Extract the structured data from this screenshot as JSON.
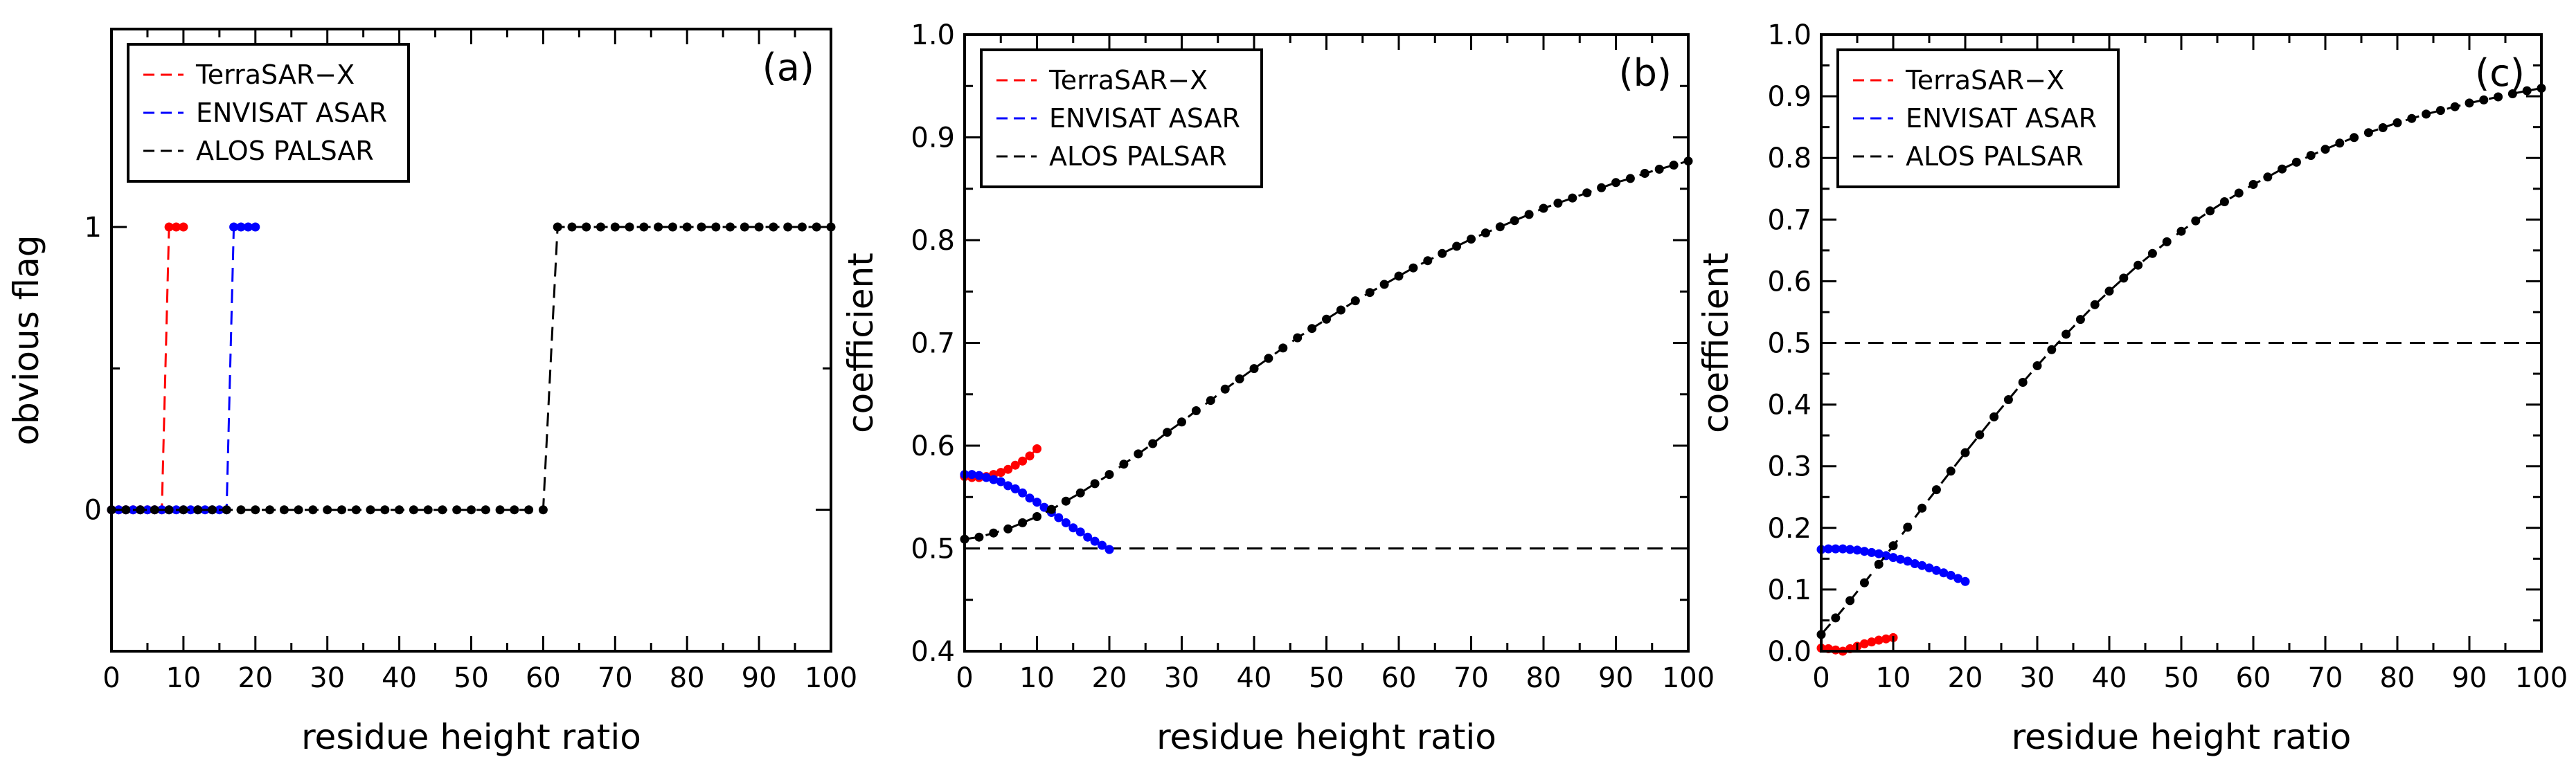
{
  "figure": {
    "background": "#ffffff"
  },
  "series_styles": [
    {
      "name": "TerraSAR−X",
      "color": "#ff0000"
    },
    {
      "name": "ENVISAT ASAR",
      "color": "#0000ff"
    },
    {
      "name": "ALOS PALSAR",
      "color": "#000000"
    }
  ],
  "chart_data": [
    {
      "type": "line",
      "panel": "(a)",
      "xlabel": "residue height ratio",
      "ylabel": "obvious flag",
      "xlim": [
        0,
        100
      ],
      "ylim": [
        -0.5,
        1.7
      ],
      "xticks": [
        0,
        10,
        20,
        30,
        40,
        50,
        60,
        70,
        80,
        90,
        100
      ],
      "yticks": [
        0,
        1
      ],
      "hline": null,
      "legend_position": "top-left",
      "series": [
        {
          "name": "TerraSAR−X",
          "color": "#ff0000",
          "x": [
            0,
            1,
            2,
            3,
            4,
            5,
            6,
            7,
            8,
            9,
            10
          ],
          "y": [
            0,
            0,
            0,
            0,
            0,
            0,
            0,
            0,
            1,
            1,
            1
          ]
        },
        {
          "name": "ENVISAT ASAR",
          "color": "#0000ff",
          "x": [
            0,
            1,
            2,
            3,
            4,
            5,
            6,
            7,
            8,
            9,
            10,
            11,
            12,
            13,
            14,
            15,
            16,
            17,
            18,
            19,
            20
          ],
          "y": [
            0,
            0,
            0,
            0,
            0,
            0,
            0,
            0,
            0,
            0,
            0,
            0,
            0,
            0,
            0,
            0,
            0,
            1,
            1,
            1,
            1
          ]
        },
        {
          "name": "ALOS PALSAR",
          "color": "#000000",
          "x": [
            0,
            2,
            4,
            6,
            8,
            10,
            12,
            14,
            16,
            18,
            20,
            22,
            24,
            26,
            28,
            30,
            32,
            34,
            36,
            38,
            40,
            42,
            44,
            46,
            48,
            50,
            52,
            54,
            56,
            58,
            60,
            62,
            64,
            66,
            68,
            70,
            72,
            74,
            76,
            78,
            80,
            82,
            84,
            86,
            88,
            90,
            92,
            94,
            96,
            98,
            100
          ],
          "y": [
            0,
            0,
            0,
            0,
            0,
            0,
            0,
            0,
            0,
            0,
            0,
            0,
            0,
            0,
            0,
            0,
            0,
            0,
            0,
            0,
            0,
            0,
            0,
            0,
            0,
            0,
            0,
            0,
            0,
            0,
            0,
            1,
            1,
            1,
            1,
            1,
            1,
            1,
            1,
            1,
            1,
            1,
            1,
            1,
            1,
            1,
            1,
            1,
            1,
            1,
            1
          ]
        }
      ]
    },
    {
      "type": "line",
      "panel": "(b)",
      "xlabel": "residue height ratio",
      "ylabel": "coefficient",
      "xlim": [
        0,
        100
      ],
      "ylim": [
        0.4,
        1.0
      ],
      "xticks": [
        0,
        10,
        20,
        30,
        40,
        50,
        60,
        70,
        80,
        90,
        100
      ],
      "yticks": [
        0.4,
        0.5,
        0.6,
        0.7,
        0.8,
        0.9,
        1.0
      ],
      "hline": 0.5,
      "legend_position": "top-left",
      "series": [
        {
          "name": "TerraSAR−X",
          "color": "#ff0000",
          "x": [
            0,
            1,
            2,
            3,
            4,
            5,
            6,
            7,
            8,
            9,
            10
          ],
          "y": [
            0.57,
            0.569,
            0.569,
            0.57,
            0.572,
            0.574,
            0.577,
            0.581,
            0.585,
            0.59,
            0.597
          ]
        },
        {
          "name": "ENVISAT ASAR",
          "color": "#0000ff",
          "x": [
            0,
            1,
            2,
            3,
            4,
            5,
            6,
            7,
            8,
            9,
            10,
            11,
            12,
            13,
            14,
            15,
            16,
            17,
            18,
            19,
            20
          ],
          "y": [
            0.572,
            0.572,
            0.571,
            0.569,
            0.567,
            0.565,
            0.561,
            0.558,
            0.554,
            0.549,
            0.545,
            0.54,
            0.535,
            0.53,
            0.525,
            0.52,
            0.516,
            0.511,
            0.507,
            0.503,
            0.499
          ]
        },
        {
          "name": "ALOS PALSAR",
          "color": "#000000",
          "x": [
            0,
            2,
            4,
            6,
            8,
            10,
            12,
            14,
            16,
            18,
            20,
            22,
            24,
            26,
            28,
            30,
            32,
            34,
            36,
            38,
            40,
            42,
            44,
            46,
            48,
            50,
            52,
            54,
            56,
            58,
            60,
            62,
            64,
            66,
            68,
            70,
            72,
            74,
            76,
            78,
            80,
            82,
            84,
            86,
            88,
            90,
            92,
            94,
            96,
            98,
            100
          ],
          "y": [
            0.509,
            0.511,
            0.515,
            0.519,
            0.525,
            0.531,
            0.538,
            0.546,
            0.554,
            0.563,
            0.572,
            0.582,
            0.592,
            0.602,
            0.613,
            0.623,
            0.634,
            0.644,
            0.655,
            0.665,
            0.675,
            0.685,
            0.695,
            0.705,
            0.714,
            0.723,
            0.732,
            0.741,
            0.749,
            0.757,
            0.765,
            0.773,
            0.78,
            0.787,
            0.794,
            0.801,
            0.807,
            0.813,
            0.819,
            0.825,
            0.831,
            0.836,
            0.841,
            0.846,
            0.851,
            0.856,
            0.86,
            0.865,
            0.869,
            0.873,
            0.877
          ]
        }
      ]
    },
    {
      "type": "line",
      "panel": "(c)",
      "xlabel": "residue height ratio",
      "ylabel": "coefficient",
      "xlim": [
        0,
        100
      ],
      "ylim": [
        0.0,
        1.0
      ],
      "xticks": [
        0,
        10,
        20,
        30,
        40,
        50,
        60,
        70,
        80,
        90,
        100
      ],
      "yticks": [
        0.0,
        0.1,
        0.2,
        0.3,
        0.4,
        0.5,
        0.6,
        0.7,
        0.8,
        0.9,
        1.0
      ],
      "hline": 0.5,
      "legend_position": "top-left",
      "series": [
        {
          "name": "TerraSAR−X",
          "color": "#ff0000",
          "x": [
            0,
            1,
            2,
            3,
            4,
            5,
            6,
            7,
            8,
            9,
            10
          ],
          "y": [
            0.005,
            0.004,
            0.002,
            0.0,
            0.004,
            0.008,
            0.012,
            0.015,
            0.018,
            0.02,
            0.022
          ]
        },
        {
          "name": "ENVISAT ASAR",
          "color": "#0000ff",
          "x": [
            0,
            1,
            2,
            3,
            4,
            5,
            6,
            7,
            8,
            9,
            10,
            11,
            12,
            13,
            14,
            15,
            16,
            17,
            18,
            19,
            20
          ],
          "y": [
            0.165,
            0.166,
            0.166,
            0.166,
            0.165,
            0.164,
            0.162,
            0.16,
            0.158,
            0.155,
            0.152,
            0.149,
            0.146,
            0.142,
            0.139,
            0.135,
            0.131,
            0.127,
            0.123,
            0.118,
            0.113
          ]
        },
        {
          "name": "ALOS PALSAR",
          "color": "#000000",
          "x": [
            0,
            2,
            4,
            6,
            8,
            10,
            12,
            14,
            16,
            18,
            20,
            22,
            24,
            26,
            28,
            30,
            32,
            34,
            36,
            38,
            40,
            42,
            44,
            46,
            48,
            50,
            52,
            54,
            56,
            58,
            60,
            62,
            64,
            66,
            68,
            70,
            72,
            74,
            76,
            78,
            80,
            82,
            84,
            86,
            88,
            90,
            92,
            94,
            96,
            98,
            100
          ],
          "y": [
            0.027,
            0.054,
            0.082,
            0.111,
            0.141,
            0.171,
            0.201,
            0.232,
            0.262,
            0.292,
            0.322,
            0.351,
            0.38,
            0.408,
            0.436,
            0.463,
            0.489,
            0.514,
            0.538,
            0.562,
            0.584,
            0.605,
            0.626,
            0.645,
            0.664,
            0.681,
            0.698,
            0.714,
            0.729,
            0.743,
            0.757,
            0.769,
            0.782,
            0.793,
            0.804,
            0.814,
            0.824,
            0.833,
            0.841,
            0.849,
            0.857,
            0.864,
            0.871,
            0.877,
            0.883,
            0.889,
            0.894,
            0.899,
            0.904,
            0.909,
            0.913
          ]
        }
      ]
    }
  ]
}
